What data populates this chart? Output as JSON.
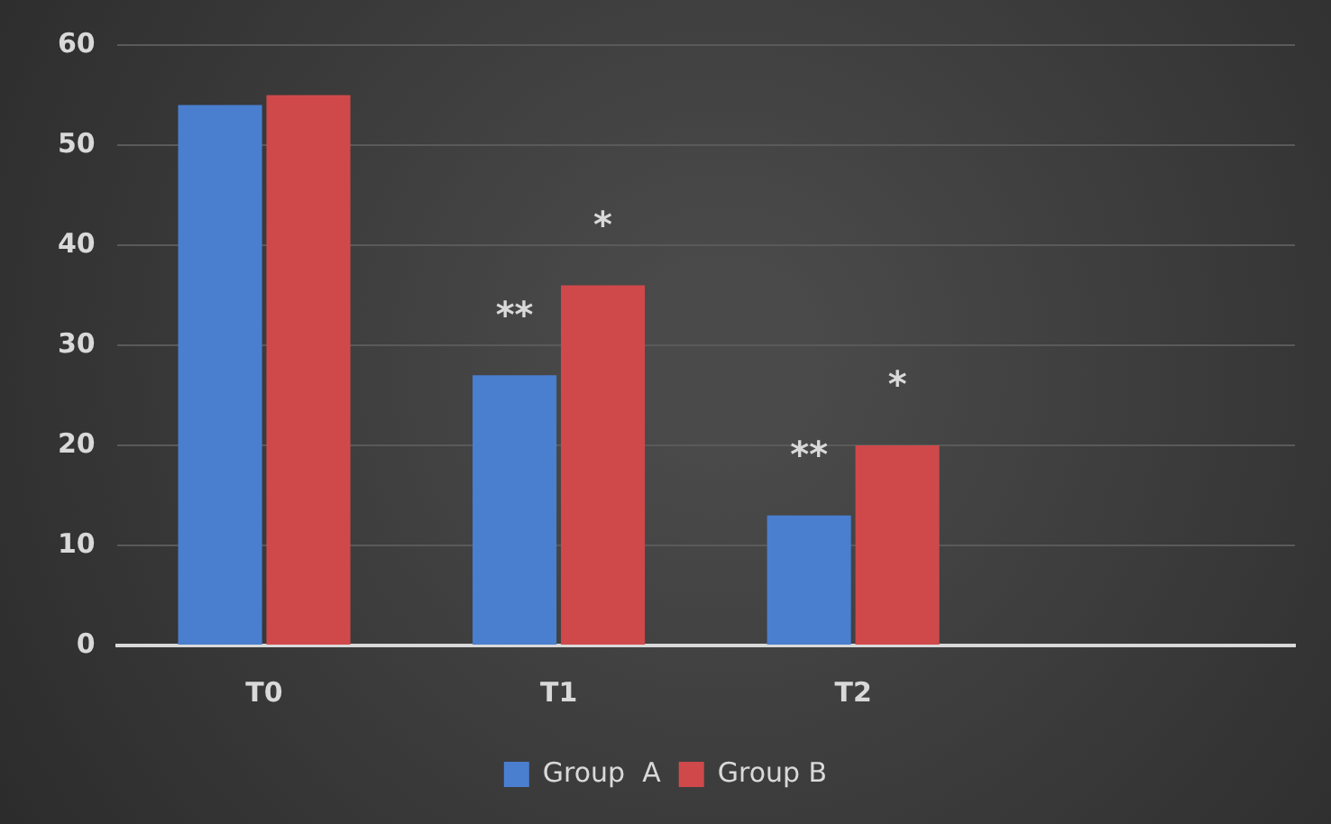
{
  "chart_data": {
    "type": "bar",
    "categories": [
      "T0",
      "T1",
      "T2",
      null
    ],
    "series": [
      {
        "name": "Group  A",
        "color": "#4a7fd0",
        "values": [
          54,
          27,
          13,
          null
        ]
      },
      {
        "name": "Group B",
        "color": "#d0494a",
        "values": [
          55,
          36,
          20,
          null
        ]
      }
    ],
    "ylim": [
      0,
      60
    ],
    "yticks": [
      0,
      10,
      20,
      30,
      40,
      50,
      60
    ],
    "grid": "y",
    "legend": "bottom",
    "annotations": [
      {
        "text": "**",
        "x": "T1",
        "y": 27
      },
      {
        "text": "*",
        "x": "T1",
        "y": 36
      },
      {
        "text": "**",
        "x": "T2",
        "y": 13
      },
      {
        "text": "*",
        "x": "T2",
        "y": 20
      }
    ]
  }
}
